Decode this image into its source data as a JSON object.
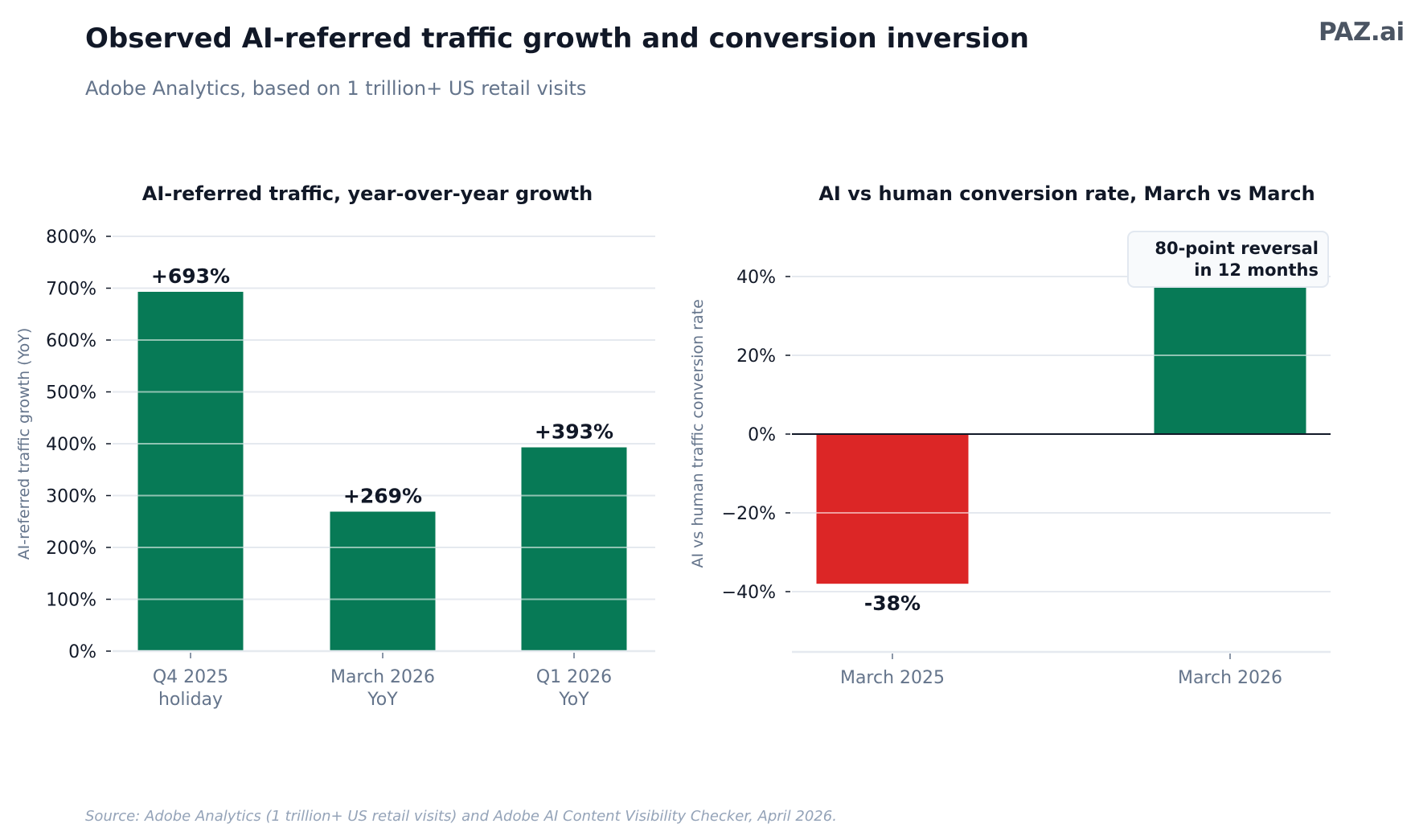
{
  "header": {
    "title": "Observed AI-referred traffic growth and conversion inversion",
    "subtitle": "Adobe Analytics, based on 1 trillion+ US retail visits",
    "logo": "PAZ.ai"
  },
  "footer": {
    "source": "Source: Adobe Analytics (1 trillion+ US retail visits) and Adobe AI Content Visibility Checker, April 2026."
  },
  "colors": {
    "positive": "#077a56",
    "negative": "#dc2626",
    "grid": "#e5e9ef",
    "text": "#111827",
    "muted": "#64748b"
  },
  "chart_data": [
    {
      "type": "bar",
      "title": "AI-referred traffic, year-over-year growth",
      "xlabel": "",
      "ylabel": "AI-referred traffic growth (YoY)",
      "categories": [
        [
          "Q4 2025",
          "holiday"
        ],
        [
          "March 2026",
          "YoY"
        ],
        [
          "Q1 2026",
          "YoY"
        ]
      ],
      "values": [
        693,
        269,
        393
      ],
      "data_labels": [
        "+693%",
        "+269%",
        "+393%"
      ],
      "ylim": [
        0,
        800
      ],
      "yticks": [
        0,
        100,
        200,
        300,
        400,
        500,
        600,
        700,
        800
      ],
      "ytick_labels": [
        "0%",
        "100%",
        "200%",
        "300%",
        "400%",
        "500%",
        "600%",
        "700%",
        "800%"
      ],
      "grid": true
    },
    {
      "type": "bar",
      "title": "AI vs human conversion rate, March vs March",
      "xlabel": "",
      "ylabel": "AI vs human traffic conversion rate",
      "categories": [
        [
          "March 2025"
        ],
        [
          "March 2026"
        ]
      ],
      "values": [
        -38,
        42
      ],
      "data_labels": [
        "-38%",
        ""
      ],
      "ylim": [
        -55,
        52
      ],
      "yticks": [
        -40,
        -20,
        0,
        20,
        40
      ],
      "ytick_labels": [
        "−40%",
        "−20%",
        "0%",
        "20%",
        "40%"
      ],
      "grid": true,
      "annotation": [
        "80-point reversal",
        "in 12 months"
      ]
    }
  ]
}
